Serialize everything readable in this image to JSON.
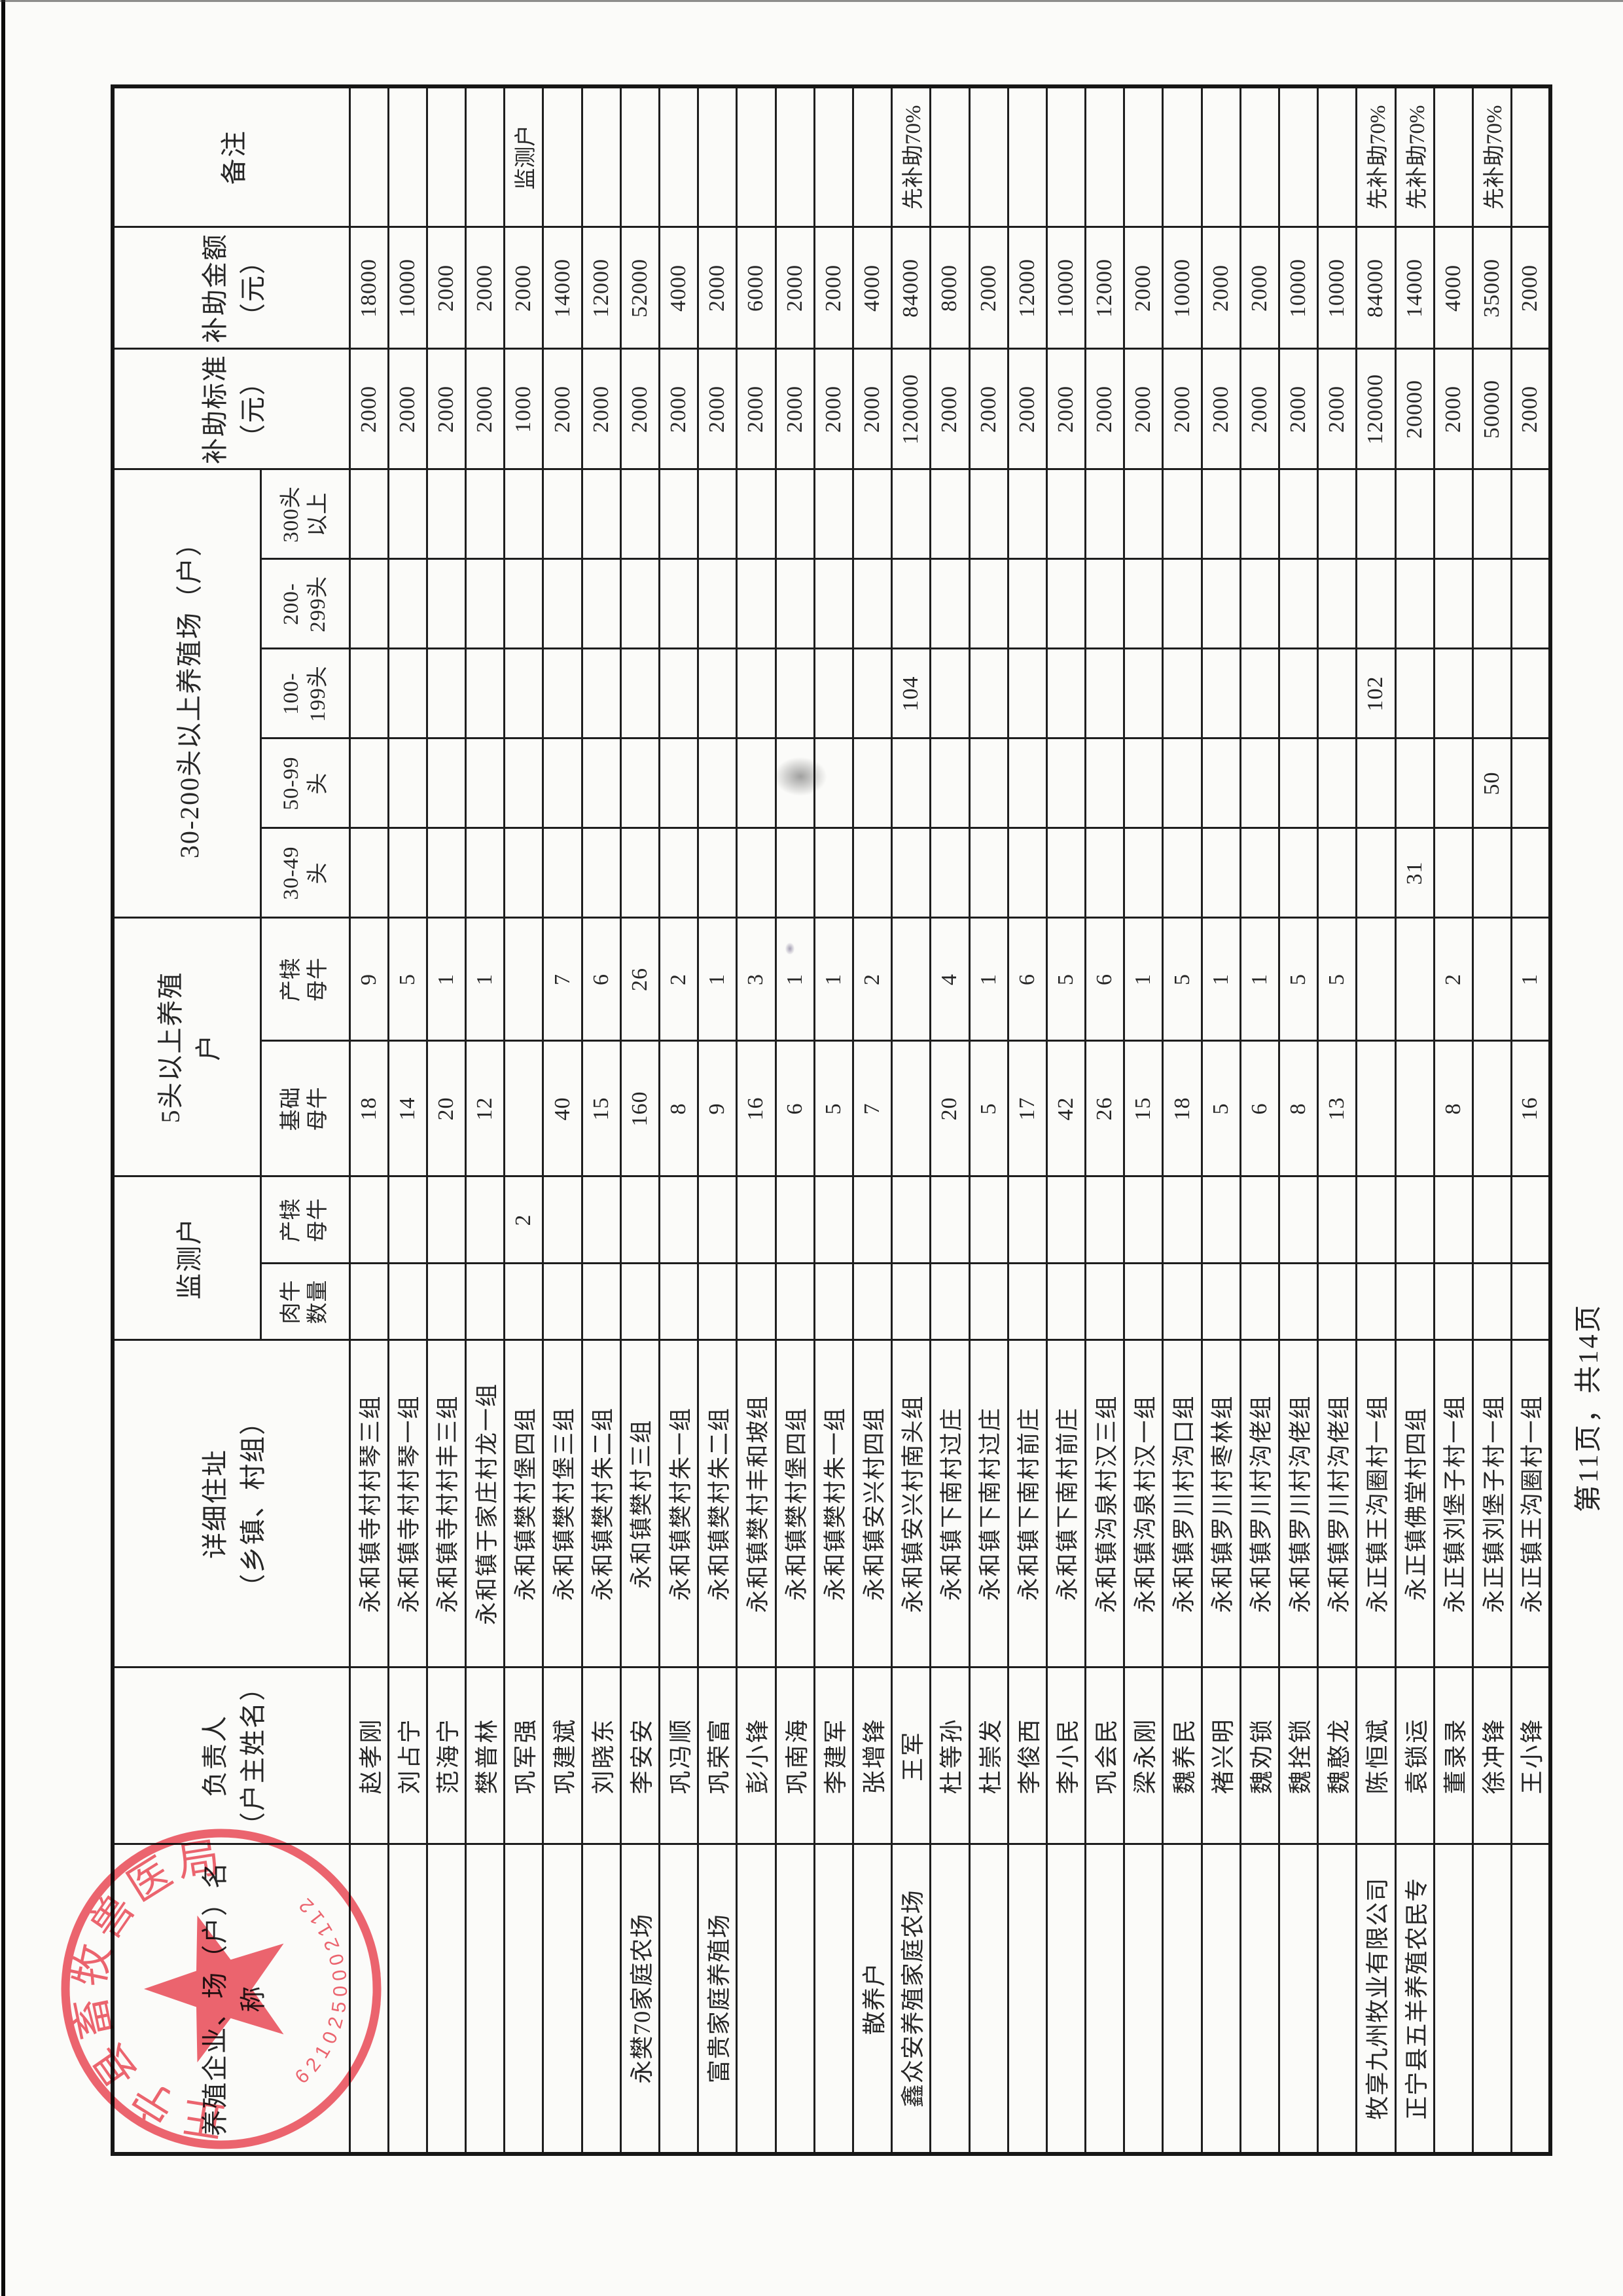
{
  "page": {
    "footer_text": "第11页，共14页",
    "background_color": "#fbfbf9",
    "line_color": "#1e1e1e"
  },
  "stamp": {
    "arc_text": "正宁县畜牧兽医局",
    "serial_number": "6210250002112",
    "color": "#e84a56"
  },
  "table": {
    "header": {
      "farm_name": "养殖企业、场（户）名\n称",
      "farmer": "负责人\n（户主姓名）",
      "address": "详细住址\n（乡镇、村组）",
      "monitor_group": "监测户",
      "monitor_beef": "肉牛\n数量",
      "monitor_calf": "产犊\n母牛",
      "over5_group": "5头以上养殖\n户",
      "basic_cows": "基础\n母牛",
      "calf_cows": "产犊\n母牛",
      "scale_group": "30-200头以上养殖场（户）",
      "h30_49": "30-49\n头",
      "h50_99": "50-99\n头",
      "h100_199": "100-\n199头",
      "h200_299": "200-\n299头",
      "h300_plus": "300头\n以上",
      "standard": "补助标准\n（元）",
      "amount": "补助金额\n（元）",
      "remark": "备注"
    },
    "column_order": [
      "farm_name",
      "farmer",
      "address",
      "monitor_beef",
      "monitor_calf",
      "basic_cows",
      "calf_cows",
      "h30_49",
      "h50_99",
      "h100_199",
      "h200_299",
      "h300_plus",
      "standard",
      "amount",
      "remark"
    ],
    "rows": [
      {
        "farm_name": "",
        "farmer": "赵孝刚",
        "address": "永和镇寺村村琴三组",
        "monitor_beef": "",
        "monitor_calf": "",
        "basic_cows": "18",
        "calf_cows": "9",
        "h30_49": "",
        "h50_99": "",
        "h100_199": "",
        "h200_299": "",
        "h300_plus": "",
        "standard": "2000",
        "amount": "18000",
        "remark": ""
      },
      {
        "farm_name": "",
        "farmer": "刘占宁",
        "address": "永和镇寺村村琴一组",
        "monitor_beef": "",
        "monitor_calf": "",
        "basic_cows": "14",
        "calf_cows": "5",
        "h30_49": "",
        "h50_99": "",
        "h100_199": "",
        "h200_299": "",
        "h300_plus": "",
        "standard": "2000",
        "amount": "10000",
        "remark": ""
      },
      {
        "farm_name": "",
        "farmer": "范海宁",
        "address": "永和镇寺村村丰三组",
        "monitor_beef": "",
        "monitor_calf": "",
        "basic_cows": "20",
        "calf_cows": "1",
        "h30_49": "",
        "h50_99": "",
        "h100_199": "",
        "h200_299": "",
        "h300_plus": "",
        "standard": "2000",
        "amount": "2000",
        "remark": ""
      },
      {
        "farm_name": "",
        "farmer": "樊普林",
        "address": "永和镇于家庄村龙一组",
        "monitor_beef": "",
        "monitor_calf": "",
        "basic_cows": "12",
        "calf_cows": "1",
        "h30_49": "",
        "h50_99": "",
        "h100_199": "",
        "h200_299": "",
        "h300_plus": "",
        "standard": "2000",
        "amount": "2000",
        "remark": ""
      },
      {
        "farm_name": "",
        "farmer": "巩军强",
        "address": "永和镇樊村堡四组",
        "monitor_beef": "",
        "monitor_calf": "2",
        "basic_cows": "",
        "calf_cows": "",
        "h30_49": "",
        "h50_99": "",
        "h100_199": "",
        "h200_299": "",
        "h300_plus": "",
        "standard": "1000",
        "amount": "2000",
        "remark": "监测户"
      },
      {
        "farm_name": "",
        "farmer": "巩建斌",
        "address": "永和镇樊村堡三组",
        "monitor_beef": "",
        "monitor_calf": "",
        "basic_cows": "40",
        "calf_cows": "7",
        "h30_49": "",
        "h50_99": "",
        "h100_199": "",
        "h200_299": "",
        "h300_plus": "",
        "standard": "2000",
        "amount": "14000",
        "remark": ""
      },
      {
        "farm_name": "",
        "farmer": "刘晓东",
        "address": "永和镇樊村朱二组",
        "monitor_beef": "",
        "monitor_calf": "",
        "basic_cows": "15",
        "calf_cows": "6",
        "h30_49": "",
        "h50_99": "",
        "h100_199": "",
        "h200_299": "",
        "h300_plus": "",
        "standard": "2000",
        "amount": "12000",
        "remark": ""
      },
      {
        "farm_name": "永樊70家庭农场",
        "farmer": "李安安",
        "address": "永和镇樊村三组",
        "monitor_beef": "",
        "monitor_calf": "",
        "basic_cows": "160",
        "calf_cows": "26",
        "h30_49": "",
        "h50_99": "",
        "h100_199": "",
        "h200_299": "",
        "h300_plus": "",
        "standard": "2000",
        "amount": "52000",
        "remark": ""
      },
      {
        "farm_name": "",
        "farmer": "巩冯顺",
        "address": "永和镇樊村朱一组",
        "monitor_beef": "",
        "monitor_calf": "",
        "basic_cows": "8",
        "calf_cows": "2",
        "h30_49": "",
        "h50_99": "",
        "h100_199": "",
        "h200_299": "",
        "h300_plus": "",
        "standard": "2000",
        "amount": "4000",
        "remark": ""
      },
      {
        "farm_name": "富贵家庭养殖场",
        "farmer": "巩荣富",
        "address": "永和镇樊村朱二组",
        "monitor_beef": "",
        "monitor_calf": "",
        "basic_cows": "9",
        "calf_cows": "1",
        "h30_49": "",
        "h50_99": "",
        "h100_199": "",
        "h200_299": "",
        "h300_plus": "",
        "standard": "2000",
        "amount": "2000",
        "remark": ""
      },
      {
        "farm_name": "",
        "farmer": "彭小锋",
        "address": "永和镇樊村丰和坡组",
        "monitor_beef": "",
        "monitor_calf": "",
        "basic_cows": "16",
        "calf_cows": "3",
        "h30_49": "",
        "h50_99": "",
        "h100_199": "",
        "h200_299": "",
        "h300_plus": "",
        "standard": "2000",
        "amount": "6000",
        "remark": ""
      },
      {
        "farm_name": "",
        "farmer": "巩南海",
        "address": "永和镇樊村堡四组",
        "monitor_beef": "",
        "monitor_calf": "",
        "basic_cows": "6",
        "calf_cows": "1",
        "h30_49": "",
        "h50_99": "",
        "h100_199": "",
        "h200_299": "",
        "h300_plus": "",
        "standard": "2000",
        "amount": "2000",
        "remark": ""
      },
      {
        "farm_name": "",
        "farmer": "李建军",
        "address": "永和镇樊村朱一组",
        "monitor_beef": "",
        "monitor_calf": "",
        "basic_cows": "5",
        "calf_cows": "1",
        "h30_49": "",
        "h50_99": "",
        "h100_199": "",
        "h200_299": "",
        "h300_plus": "",
        "standard": "2000",
        "amount": "2000",
        "remark": ""
      },
      {
        "farm_name": "散养户",
        "farmer": "张增锋",
        "address": "永和镇安兴村四组",
        "monitor_beef": "",
        "monitor_calf": "",
        "basic_cows": "7",
        "calf_cows": "2",
        "h30_49": "",
        "h50_99": "",
        "h100_199": "",
        "h200_299": "",
        "h300_plus": "",
        "standard": "2000",
        "amount": "4000",
        "remark": ""
      },
      {
        "farm_name": "鑫众安养殖家庭农场",
        "farmer": "王军",
        "address": "永和镇安兴村南头组",
        "monitor_beef": "",
        "monitor_calf": "",
        "basic_cows": "",
        "calf_cows": "",
        "h30_49": "",
        "h50_99": "",
        "h100_199": "104",
        "h200_299": "",
        "h300_plus": "",
        "standard": "120000",
        "amount": "84000",
        "remark": "先补助70%"
      },
      {
        "farm_name": "",
        "farmer": "杜等孙",
        "address": "永和镇下南村过庄",
        "monitor_beef": "",
        "monitor_calf": "",
        "basic_cows": "20",
        "calf_cows": "4",
        "h30_49": "",
        "h50_99": "",
        "h100_199": "",
        "h200_299": "",
        "h300_plus": "",
        "standard": "2000",
        "amount": "8000",
        "remark": ""
      },
      {
        "farm_name": "",
        "farmer": "杜崇发",
        "address": "永和镇下南村过庄",
        "monitor_beef": "",
        "monitor_calf": "",
        "basic_cows": "5",
        "calf_cows": "1",
        "h30_49": "",
        "h50_99": "",
        "h100_199": "",
        "h200_299": "",
        "h300_plus": "",
        "standard": "2000",
        "amount": "2000",
        "remark": ""
      },
      {
        "farm_name": "",
        "farmer": "李俊西",
        "address": "永和镇下南村前庄",
        "monitor_beef": "",
        "monitor_calf": "",
        "basic_cows": "17",
        "calf_cows": "6",
        "h30_49": "",
        "h50_99": "",
        "h100_199": "",
        "h200_299": "",
        "h300_plus": "",
        "standard": "2000",
        "amount": "12000",
        "remark": ""
      },
      {
        "farm_name": "",
        "farmer": "李小民",
        "address": "永和镇下南村前庄",
        "monitor_beef": "",
        "monitor_calf": "",
        "basic_cows": "42",
        "calf_cows": "5",
        "h30_49": "",
        "h50_99": "",
        "h100_199": "",
        "h200_299": "",
        "h300_plus": "",
        "standard": "2000",
        "amount": "10000",
        "remark": ""
      },
      {
        "farm_name": "",
        "farmer": "巩会民",
        "address": "永和镇沟泉村汉三组",
        "monitor_beef": "",
        "monitor_calf": "",
        "basic_cows": "26",
        "calf_cows": "6",
        "h30_49": "",
        "h50_99": "",
        "h100_199": "",
        "h200_299": "",
        "h300_plus": "",
        "standard": "2000",
        "amount": "12000",
        "remark": ""
      },
      {
        "farm_name": "",
        "farmer": "梁永刚",
        "address": "永和镇沟泉村汉一组",
        "monitor_beef": "",
        "monitor_calf": "",
        "basic_cows": "15",
        "calf_cows": "1",
        "h30_49": "",
        "h50_99": "",
        "h100_199": "",
        "h200_299": "",
        "h300_plus": "",
        "standard": "2000",
        "amount": "2000",
        "remark": ""
      },
      {
        "farm_name": "",
        "farmer": "魏养民",
        "address": "永和镇罗川村沟口组",
        "monitor_beef": "",
        "monitor_calf": "",
        "basic_cows": "18",
        "calf_cows": "5",
        "h30_49": "",
        "h50_99": "",
        "h100_199": "",
        "h200_299": "",
        "h300_plus": "",
        "standard": "2000",
        "amount": "10000",
        "remark": ""
      },
      {
        "farm_name": "",
        "farmer": "褚兴明",
        "address": "永和镇罗川村枣林组",
        "monitor_beef": "",
        "monitor_calf": "",
        "basic_cows": "5",
        "calf_cows": "1",
        "h30_49": "",
        "h50_99": "",
        "h100_199": "",
        "h200_299": "",
        "h300_plus": "",
        "standard": "2000",
        "amount": "2000",
        "remark": ""
      },
      {
        "farm_name": "",
        "farmer": "魏劝锁",
        "address": "永和镇罗川村沟佬组",
        "monitor_beef": "",
        "monitor_calf": "",
        "basic_cows": "6",
        "calf_cows": "1",
        "h30_49": "",
        "h50_99": "",
        "h100_199": "",
        "h200_299": "",
        "h300_plus": "",
        "standard": "2000",
        "amount": "2000",
        "remark": ""
      },
      {
        "farm_name": "",
        "farmer": "魏拴锁",
        "address": "永和镇罗川村沟佬组",
        "monitor_beef": "",
        "monitor_calf": "",
        "basic_cows": "8",
        "calf_cows": "5",
        "h30_49": "",
        "h50_99": "",
        "h100_199": "",
        "h200_299": "",
        "h300_plus": "",
        "standard": "2000",
        "amount": "10000",
        "remark": ""
      },
      {
        "farm_name": "",
        "farmer": "魏憨龙",
        "address": "永和镇罗川村沟佬组",
        "monitor_beef": "",
        "monitor_calf": "",
        "basic_cows": "13",
        "calf_cows": "5",
        "h30_49": "",
        "h50_99": "",
        "h100_199": "",
        "h200_299": "",
        "h300_plus": "",
        "standard": "2000",
        "amount": "10000",
        "remark": ""
      },
      {
        "farm_name": "牧享九州牧业有限公司",
        "farmer": "陈恒斌",
        "address": "永正镇王沟圈村一组",
        "monitor_beef": "",
        "monitor_calf": "",
        "basic_cows": "",
        "calf_cows": "",
        "h30_49": "",
        "h50_99": "",
        "h100_199": "102",
        "h200_299": "",
        "h300_plus": "",
        "standard": "120000",
        "amount": "84000",
        "remark": "先补助70%"
      },
      {
        "farm_name": "正宁县五羊养殖农民专",
        "farmer": "袁锁运",
        "address": "永正镇佛堂村四组",
        "monitor_beef": "",
        "monitor_calf": "",
        "basic_cows": "",
        "calf_cows": "",
        "h30_49": "31",
        "h50_99": "",
        "h100_199": "",
        "h200_299": "",
        "h300_plus": "",
        "standard": "20000",
        "amount": "14000",
        "remark": "先补助70%"
      },
      {
        "farm_name": "",
        "farmer": "董录录",
        "address": "永正镇刘堡子村一组",
        "monitor_beef": "",
        "monitor_calf": "",
        "basic_cows": "8",
        "calf_cows": "2",
        "h30_49": "",
        "h50_99": "",
        "h100_199": "",
        "h200_299": "",
        "h300_plus": "",
        "standard": "2000",
        "amount": "4000",
        "remark": ""
      },
      {
        "farm_name": "",
        "farmer": "徐冲锋",
        "address": "永正镇刘堡子村一组",
        "monitor_beef": "",
        "monitor_calf": "",
        "basic_cows": "",
        "calf_cows": "",
        "h30_49": "",
        "h50_99": "50",
        "h100_199": "",
        "h200_299": "",
        "h300_plus": "",
        "standard": "50000",
        "amount": "35000",
        "remark": "先补助70%"
      },
      {
        "farm_name": "",
        "farmer": "王小锋",
        "address": "永正镇王沟圈村一组",
        "monitor_beef": "",
        "monitor_calf": "",
        "basic_cows": "16",
        "calf_cows": "1",
        "h30_49": "",
        "h50_99": "",
        "h100_199": "",
        "h200_299": "",
        "h300_plus": "",
        "standard": "2000",
        "amount": "2000",
        "remark": ""
      }
    ]
  }
}
